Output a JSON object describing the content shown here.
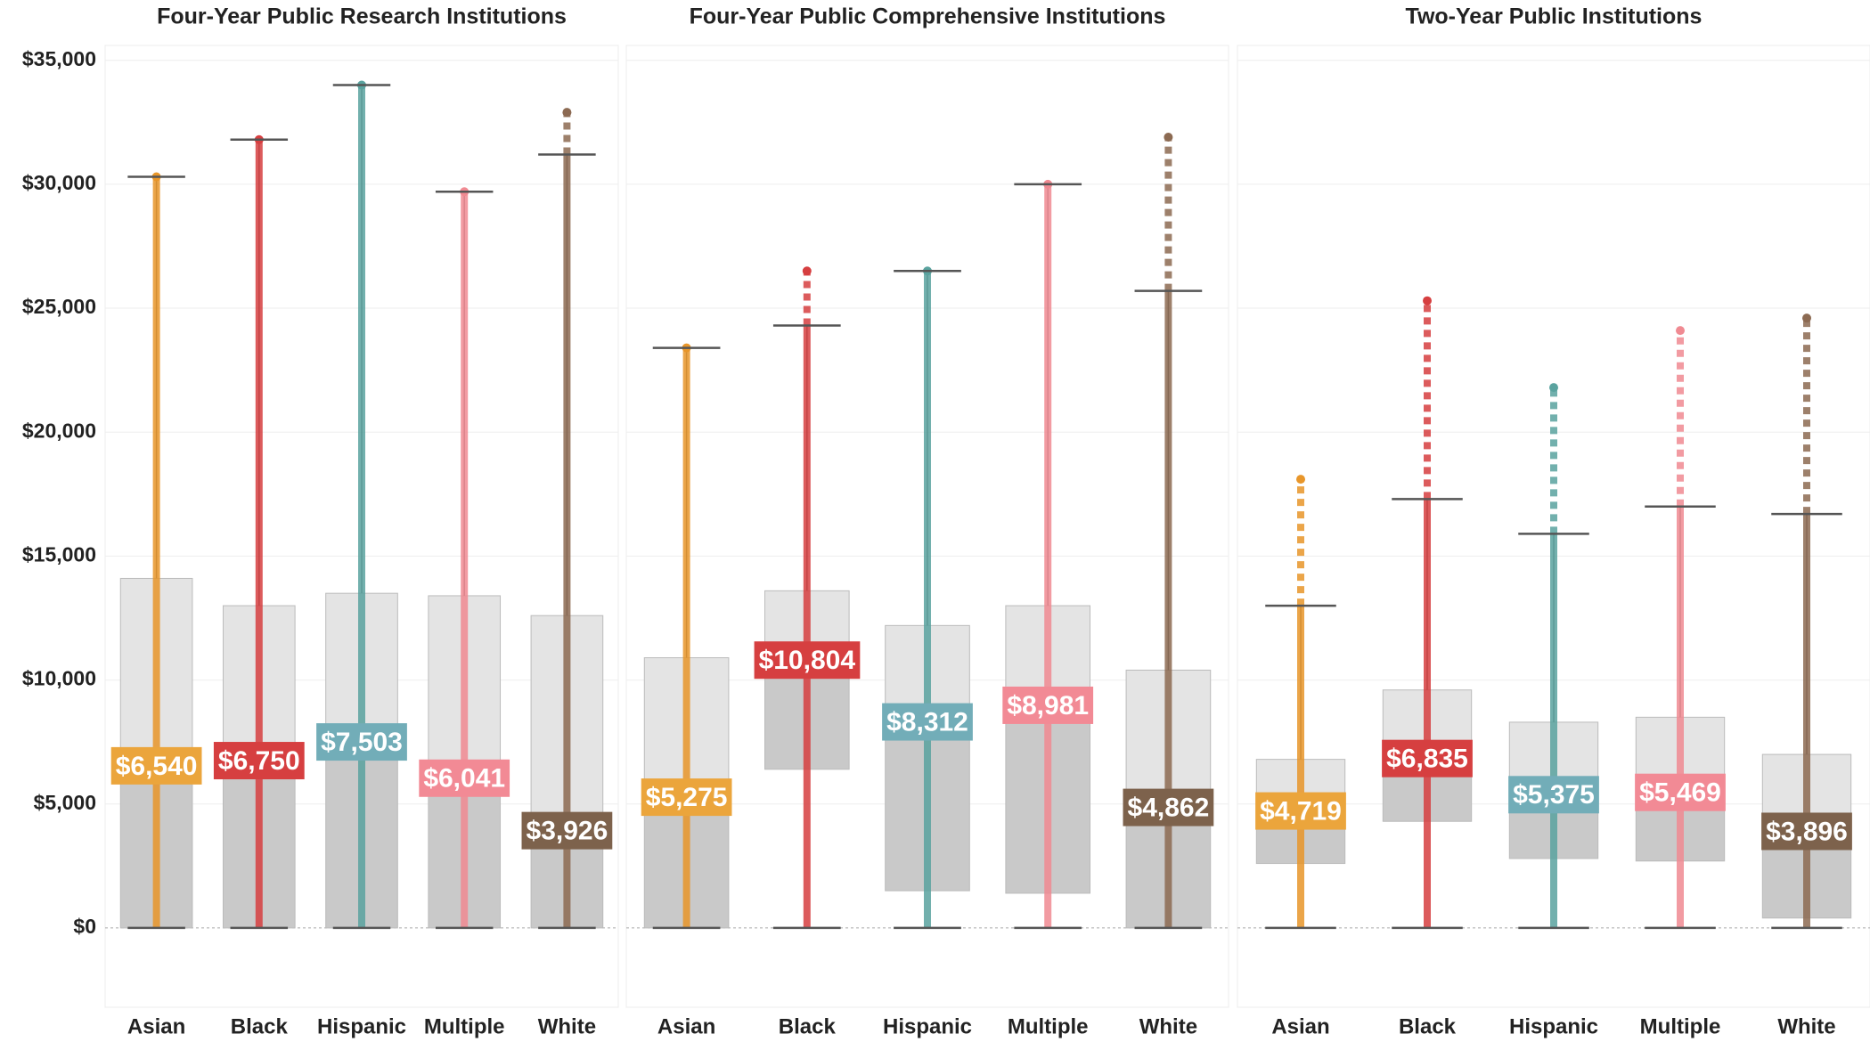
{
  "chart_data": [
    {
      "type": "box",
      "title": "Four-Year Public Research Institutions",
      "categories": [
        "Asian",
        "Black",
        "Hispanic",
        "Multiple",
        "White"
      ],
      "colors": [
        "#e8962a",
        "#d63f40",
        "#5aa39f",
        "#f08a92",
        "#8c6a52"
      ],
      "label_colors": [
        "#eba53c",
        "#d63f40",
        "#72adb8",
        "#f28a95",
        "#7d624c"
      ],
      "whisker_low": [
        0,
        0,
        0,
        0,
        0
      ],
      "q1": [
        0,
        0,
        0,
        0,
        0
      ],
      "median": [
        6540,
        6750,
        7503,
        6041,
        3926
      ],
      "value_labels": [
        "$6,540",
        "$6,750",
        "$7,503",
        "$6,041",
        "$3,926"
      ],
      "q3": [
        14100,
        13000,
        13500,
        13400,
        12600
      ],
      "whisker_high": [
        30300,
        31800,
        34000,
        29700,
        31200
      ],
      "max": [
        30300,
        31800,
        34000,
        29700,
        32900
      ],
      "ylim": [
        -3200,
        35600
      ],
      "yticks": [
        {
          "value": 0,
          "label": "$0"
        },
        {
          "value": 5000,
          "label": "$5,000"
        },
        {
          "value": 10000,
          "label": "$10,000"
        },
        {
          "value": 15000,
          "label": "$15,000"
        },
        {
          "value": 20000,
          "label": "$20,000"
        },
        {
          "value": 25000,
          "label": "$25,000"
        },
        {
          "value": 30000,
          "label": "$30,000"
        },
        {
          "value": 35000,
          "label": "$35,000"
        }
      ],
      "grid": true
    },
    {
      "type": "box",
      "title": "Four-Year Public Comprehensive Institutions",
      "categories": [
        "Asian",
        "Black",
        "Hispanic",
        "Multiple",
        "White"
      ],
      "colors": [
        "#e8962a",
        "#d63f40",
        "#5aa39f",
        "#f08a92",
        "#8c6a52"
      ],
      "label_colors": [
        "#eba53c",
        "#d63f40",
        "#72adb8",
        "#f28a95",
        "#7d624c"
      ],
      "whisker_low": [
        0,
        0,
        0,
        0,
        0
      ],
      "q1": [
        0,
        6400,
        1500,
        1400,
        0
      ],
      "median": [
        5275,
        10804,
        8312,
        8981,
        4862
      ],
      "value_labels": [
        "$5,275",
        "$10,804",
        "$8,312",
        "$8,981",
        "$4,862"
      ],
      "q3": [
        10900,
        13600,
        12200,
        13000,
        10400
      ],
      "whisker_high": [
        23400,
        24300,
        26500,
        30000,
        25700
      ],
      "max": [
        23400,
        26500,
        26500,
        30000,
        31900
      ]
    },
    {
      "type": "box",
      "title": "Two-Year Public Institutions",
      "categories": [
        "Asian",
        "Black",
        "Hispanic",
        "Multiple",
        "White"
      ],
      "colors": [
        "#e8962a",
        "#d63f40",
        "#5aa39f",
        "#f08a92",
        "#8c6a52"
      ],
      "label_colors": [
        "#eba53c",
        "#d63f40",
        "#72adb8",
        "#f28a95",
        "#7d624c"
      ],
      "whisker_low": [
        0,
        0,
        0,
        0,
        0
      ],
      "q1": [
        2600,
        4300,
        2800,
        2700,
        400
      ],
      "median": [
        4719,
        6835,
        5375,
        5469,
        3896
      ],
      "value_labels": [
        "$4,719",
        "$6,835",
        "$5,375",
        "$5,469",
        "$3,896"
      ],
      "q3": [
        6800,
        9600,
        8300,
        8500,
        7000
      ],
      "whisker_high": [
        13000,
        17300,
        15900,
        17000,
        16700
      ],
      "max": [
        18100,
        25300,
        21800,
        24100,
        24600
      ]
    }
  ]
}
